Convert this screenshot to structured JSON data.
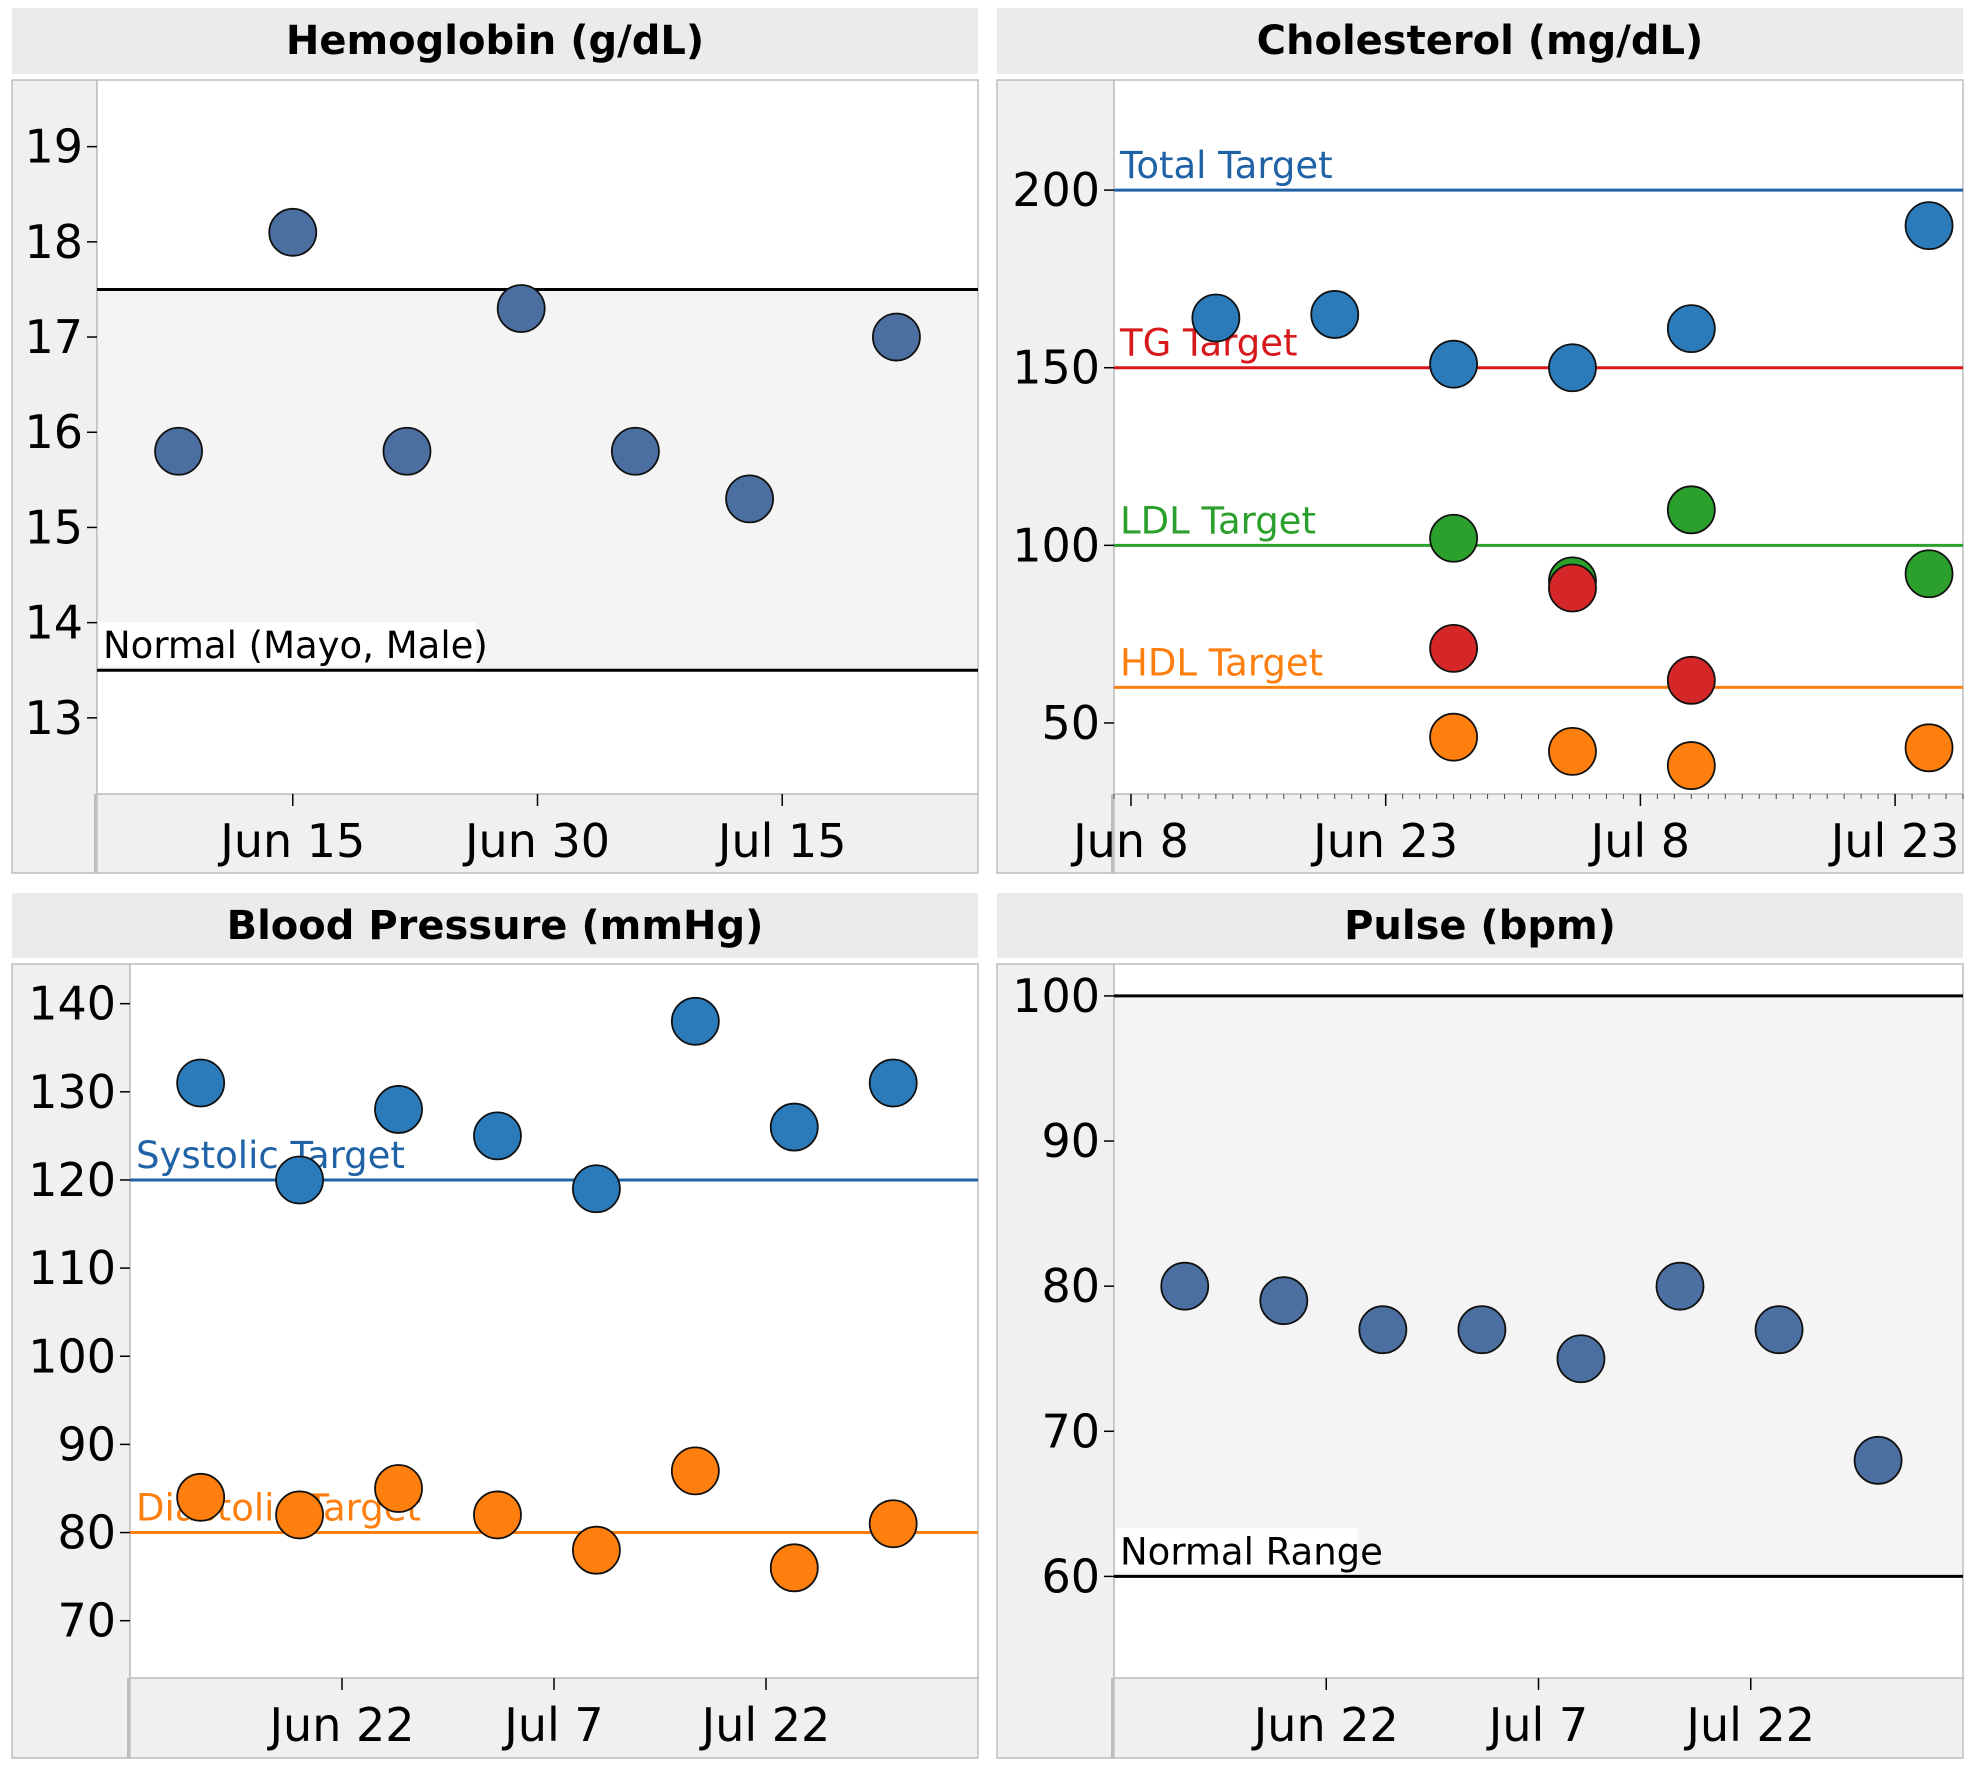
{
  "chart_data": [
    {
      "id": "hemoglobin",
      "type": "scatter",
      "title": "Hemoglobin (g/dL)",
      "xlabel": "",
      "ylabel": "",
      "x_axis": "date",
      "xlim": [
        "2024-06-03",
        "2024-07-27"
      ],
      "ylim": [
        12.2,
        19.7
      ],
      "yticks": [
        13,
        14,
        15,
        16,
        17,
        18,
        19
      ],
      "xticks": [
        {
          "label": "Jun 15",
          "date": "2024-06-15"
        },
        {
          "label": "Jun 30",
          "date": "2024-06-30"
        },
        {
          "label": "Jul 15",
          "date": "2024-07-15"
        }
      ],
      "minor_ticks": false,
      "grid": false,
      "band": {
        "from": 13.5,
        "to": 17.5,
        "color": "#f4f4f4"
      },
      "ref_lines": [
        {
          "y": 17.5,
          "label": "",
          "color": "#000000"
        },
        {
          "y": 13.5,
          "label": "Normal (Mayo, Male)",
          "color": "#000000"
        }
      ],
      "series": [
        {
          "color": "#4a6fa0",
          "points": [
            {
              "x": "2024-06-08",
              "y": 15.8
            },
            {
              "x": "2024-06-15",
              "y": 18.1
            },
            {
              "x": "2024-06-22",
              "y": 15.8
            },
            {
              "x": "2024-06-29",
              "y": 17.3
            },
            {
              "x": "2024-07-06",
              "y": 15.8
            },
            {
              "x": "2024-07-13",
              "y": 15.3
            },
            {
              "x": "2024-07-22",
              "y": 17.0
            }
          ]
        }
      ]
    },
    {
      "id": "cholesterol",
      "type": "scatter",
      "title": "Cholesterol (mg/dL)",
      "xlabel": "",
      "ylabel": "",
      "x_axis": "date",
      "xlim": [
        "2024-06-07",
        "2024-07-27"
      ],
      "ylim": [
        30,
        231
      ],
      "yticks": [
        50,
        100,
        150,
        200
      ],
      "xticks": [
        {
          "label": "Jun 8",
          "date": "2024-06-08"
        },
        {
          "label": "Jun 23",
          "date": "2024-06-23"
        },
        {
          "label": "Jul 8",
          "date": "2024-07-08"
        },
        {
          "label": "Jul 23",
          "date": "2024-07-23"
        }
      ],
      "minor_ticks": true,
      "grid": false,
      "band": null,
      "ref_lines": [
        {
          "y": 200,
          "label": "Total Target",
          "color": "#1f63a6"
        },
        {
          "y": 150,
          "label": "TG Target",
          "color": "#d7191c"
        },
        {
          "y": 100,
          "label": "LDL Target",
          "color": "#2ca02c"
        },
        {
          "y": 60,
          "label": "HDL Target",
          "color": "#ff7f0e"
        }
      ],
      "series": [
        {
          "color": "#2b7bba",
          "points": [
            {
              "x": "2024-06-13",
              "y": 164
            },
            {
              "x": "2024-06-20",
              "y": 165
            },
            {
              "x": "2024-06-27",
              "y": 151
            },
            {
              "x": "2024-07-04",
              "y": 150
            },
            {
              "x": "2024-07-11",
              "y": 161
            },
            {
              "x": "2024-07-25",
              "y": 190
            }
          ]
        },
        {
          "color": "#2ca02c",
          "points": [
            {
              "x": "2024-06-27",
              "y": 102
            },
            {
              "x": "2024-07-04",
              "y": 90
            },
            {
              "x": "2024-07-11",
              "y": 110
            },
            {
              "x": "2024-07-25",
              "y": 92
            }
          ]
        },
        {
          "color": "#d62728",
          "points": [
            {
              "x": "2024-06-27",
              "y": 71
            },
            {
              "x": "2024-07-04",
              "y": 88
            },
            {
              "x": "2024-07-11",
              "y": 62
            }
          ]
        },
        {
          "color": "#ff7f0e",
          "points": [
            {
              "x": "2024-06-27",
              "y": 46
            },
            {
              "x": "2024-07-04",
              "y": 42
            },
            {
              "x": "2024-07-11",
              "y": 38
            },
            {
              "x": "2024-07-25",
              "y": 43
            }
          ]
        }
      ]
    },
    {
      "id": "blood-pressure",
      "type": "scatter",
      "title": "Blood Pressure (mmHg)",
      "xlabel": "",
      "ylabel": "",
      "x_axis": "date",
      "xlim": [
        "2024-06-07",
        "2024-08-06"
      ],
      "ylim": [
        63.5,
        144.5
      ],
      "yticks": [
        70,
        80,
        90,
        100,
        110,
        120,
        130,
        140
      ],
      "xticks": [
        {
          "label": "Jun 22",
          "date": "2024-06-22"
        },
        {
          "label": "Jul 7",
          "date": "2024-07-07"
        },
        {
          "label": "Jul 22",
          "date": "2024-07-22"
        }
      ],
      "minor_ticks": false,
      "grid": false,
      "band": null,
      "ref_lines": [
        {
          "y": 120,
          "label": "Systolic Target",
          "color": "#1f63a6"
        },
        {
          "y": 80,
          "label": "Diastolic Target",
          "color": "#ff7f0e"
        }
      ],
      "series": [
        {
          "color": "#2b7bba",
          "points": [
            {
              "x": "2024-06-12",
              "y": 131
            },
            {
              "x": "2024-06-19",
              "y": 120
            },
            {
              "x": "2024-06-26",
              "y": 128
            },
            {
              "x": "2024-07-03",
              "y": 125
            },
            {
              "x": "2024-07-10",
              "y": 119
            },
            {
              "x": "2024-07-17",
              "y": 138
            },
            {
              "x": "2024-07-24",
              "y": 126
            },
            {
              "x": "2024-07-31",
              "y": 131
            }
          ]
        },
        {
          "color": "#ff7f0e",
          "points": [
            {
              "x": "2024-06-12",
              "y": 84
            },
            {
              "x": "2024-06-19",
              "y": 82
            },
            {
              "x": "2024-06-26",
              "y": 85
            },
            {
              "x": "2024-07-03",
              "y": 82
            },
            {
              "x": "2024-07-10",
              "y": 78
            },
            {
              "x": "2024-07-17",
              "y": 87
            },
            {
              "x": "2024-07-24",
              "y": 76
            },
            {
              "x": "2024-07-31",
              "y": 81
            }
          ]
        }
      ]
    },
    {
      "id": "pulse",
      "type": "scatter",
      "title": "Pulse (bpm)",
      "xlabel": "",
      "ylabel": "",
      "x_axis": "date",
      "xlim": [
        "2024-06-07",
        "2024-08-06"
      ],
      "ylim": [
        53,
        102.2
      ],
      "yticks": [
        60,
        70,
        80,
        90,
        100
      ],
      "xticks": [
        {
          "label": "Jun 22",
          "date": "2024-06-22"
        },
        {
          "label": "Jul 7",
          "date": "2024-07-07"
        },
        {
          "label": "Jul 22",
          "date": "2024-07-22"
        }
      ],
      "minor_ticks": false,
      "grid": false,
      "band": {
        "from": 60,
        "to": 100,
        "color": "#f4f4f4"
      },
      "ref_lines": [
        {
          "y": 100,
          "label": "",
          "color": "#000000"
        },
        {
          "y": 60,
          "label": "Normal Range",
          "color": "#000000"
        }
      ],
      "series": [
        {
          "color": "#4a6fa0",
          "points": [
            {
              "x": "2024-06-12",
              "y": 80
            },
            {
              "x": "2024-06-19",
              "y": 79
            },
            {
              "x": "2024-06-26",
              "y": 77
            },
            {
              "x": "2024-07-03",
              "y": 77
            },
            {
              "x": "2024-07-10",
              "y": 75
            },
            {
              "x": "2024-07-17",
              "y": 80
            },
            {
              "x": "2024-07-24",
              "y": 77
            },
            {
              "x": "2024-07-31",
              "y": 68
            }
          ]
        }
      ]
    }
  ]
}
